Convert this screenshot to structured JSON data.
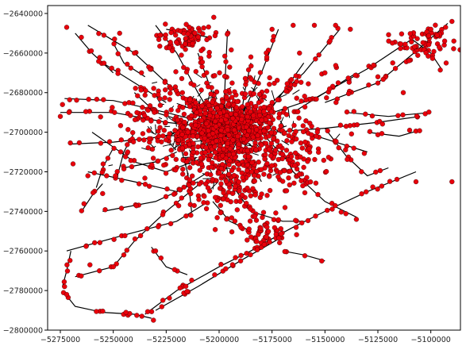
{
  "chart_data": {
    "type": "scatter",
    "title": "",
    "xlabel": "",
    "ylabel": "",
    "xlim": [
      -5281000,
      -5086000
    ],
    "ylim": [
      -2800000,
      -2636000
    ],
    "grid": false,
    "legend": "none",
    "x_ticks": [
      -5275000,
      -5250000,
      -5225000,
      -5200000,
      -5175000,
      -5150000,
      -5125000,
      -5100000
    ],
    "y_ticks": [
      -2640000,
      -2660000,
      -2680000,
      -2700000,
      -2720000,
      -2740000,
      -2760000,
      -2780000,
      -2800000
    ],
    "x_tick_labels": [
      "−5275000",
      "−5250000",
      "−5225000",
      "−5200000",
      "−5175000",
      "−5150000",
      "−5125000",
      "−5100000"
    ],
    "y_tick_labels": [
      "−2640000",
      "−2660000",
      "−2680000",
      "−2700000",
      "−2720000",
      "−2740000",
      "−2760000",
      "−2780000",
      "−2800000"
    ],
    "colors": {
      "lines": "#000000",
      "points": "#e8000b",
      "point_edge": "#000000",
      "axes": "#000000"
    },
    "series": [
      {
        "kind": "lines",
        "paths": [
          [
            [
              -5275000,
              -2690000
            ],
            [
              -5250000,
              -2690000
            ],
            [
              -5225000,
              -2695000
            ],
            [
              -5200000,
              -2698000
            ],
            [
              -5175000,
              -2700000
            ],
            [
              -5150000,
              -2698000
            ],
            [
              -5125000,
              -2695000
            ],
            [
              -5105000,
              -2692000
            ]
          ],
          [
            [
              -5271000,
              -2706000
            ],
            [
              -5250000,
              -2705000
            ],
            [
              -5225000,
              -2702000
            ],
            [
              -5200000,
              -2700000
            ]
          ],
          [
            [
              -5273000,
              -2683000
            ],
            [
              -5250000,
              -2684000
            ],
            [
              -5225000,
              -2690000
            ],
            [
              -5200000,
              -2697000
            ]
          ],
          [
            [
              -5230000,
              -2646000
            ],
            [
              -5220000,
              -2660000
            ],
            [
              -5210000,
              -2680000
            ],
            [
              -5200000,
              -2698000
            ]
          ],
          [
            [
              -5262000,
              -2646000
            ],
            [
              -5240000,
              -2660000
            ],
            [
              -5220000,
              -2680000
            ],
            [
              -5200000,
              -2697000
            ]
          ],
          [
            [
              -5196000,
              -2648000
            ],
            [
              -5197000,
              -2670000
            ],
            [
              -5198000,
              -2698000
            ]
          ],
          [
            [
              -5172000,
              -2648000
            ],
            [
              -5180000,
              -2670000
            ],
            [
              -5192000,
              -2698000
            ]
          ],
          [
            [
              -5143000,
              -2648000
            ],
            [
              -5160000,
              -2670000
            ],
            [
              -5180000,
              -2690000
            ],
            [
              -5195000,
              -2698000
            ]
          ],
          [
            [
              -5109000,
              -2653000
            ],
            [
              -5130000,
              -2668000
            ],
            [
              -5155000,
              -2683000
            ],
            [
              -5180000,
              -2692000
            ],
            [
              -5198000,
              -2698000
            ]
          ],
          [
            [
              -5092000,
              -2645000
            ],
            [
              -5108000,
              -2660000
            ],
            [
              -5125000,
              -2675000
            ],
            [
              -5150000,
              -2685000
            ]
          ],
          [
            [
              -5109000,
              -2653000
            ],
            [
              -5100000,
              -2660000
            ],
            [
              -5095000,
              -2668000
            ]
          ],
          [
            [
              -5260000,
              -2700000
            ],
            [
              -5240000,
              -2715000
            ],
            [
              -5225000,
              -2720000
            ],
            [
              -5200000,
              -2710000
            ]
          ],
          [
            [
              -5262000,
              -2720000
            ],
            [
              -5240000,
              -2725000
            ],
            [
              -5220000,
              -2730000
            ],
            [
              -5205000,
              -2720000
            ]
          ],
          [
            [
              -5255000,
              -2740000
            ],
            [
              -5230000,
              -2735000
            ],
            [
              -5210000,
              -2725000
            ]
          ],
          [
            [
              -5272000,
              -2760000
            ],
            [
              -5245000,
              -2752000
            ],
            [
              -5220000,
              -2745000
            ],
            [
              -5205000,
              -2735000
            ]
          ],
          [
            [
              -5268000,
              -2773000
            ],
            [
              -5250000,
              -2768000
            ],
            [
              -5240000,
              -2755000
            ],
            [
              -5225000,
              -2740000
            ],
            [
              -5208000,
              -2725000
            ]
          ],
          [
            [
              -5200000,
              -2700000
            ],
            [
              -5195000,
              -2725000
            ],
            [
              -5185000,
              -2740000
            ],
            [
              -5170000,
              -2745000
            ],
            [
              -5160000,
              -2745000
            ]
          ],
          [
            [
              -5175000,
              -2700000
            ],
            [
              -5165000,
              -2720000
            ],
            [
              -5150000,
              -2735000
            ],
            [
              -5135000,
              -2743000
            ]
          ],
          [
            [
              -5150000,
              -2698000
            ],
            [
              -5140000,
              -2712000
            ],
            [
              -5130000,
              -2722000
            ],
            [
              -5120000,
              -2718000
            ]
          ],
          [
            [
              -5107000,
              -2720000
            ],
            [
              -5130000,
              -2730000
            ],
            [
              -5150000,
              -2740000
            ],
            [
              -5165000,
              -2748000
            ],
            [
              -5172000,
              -2752000
            ]
          ],
          [
            [
              -5172000,
              -2752000
            ],
            [
              -5185000,
              -2760000
            ],
            [
              -5200000,
              -2768000
            ],
            [
              -5220000,
              -2780000
            ],
            [
              -5235000,
              -2792000
            ]
          ],
          [
            [
              -5172000,
              -2754000
            ],
            [
              -5190000,
              -2765000
            ],
            [
              -5210000,
              -2778000
            ],
            [
              -5230000,
              -2790000
            ]
          ],
          [
            [
              -5274000,
              -2780000
            ],
            [
              -5268000,
              -2788000
            ],
            [
              -5255000,
              -2791000
            ],
            [
              -5240000,
              -2792000
            ],
            [
              -5232000,
              -2794000
            ]
          ],
          [
            [
              -5274000,
              -2778000
            ],
            [
              -5272000,
              -2770000
            ],
            [
              -5270000,
              -2760000
            ]
          ],
          [
            [
              -5220000,
              -2700000
            ],
            [
              -5215000,
              -2720000
            ],
            [
              -5213000,
              -2740000
            ]
          ],
          [
            [
              -5190000,
              -2700000
            ],
            [
              -5185000,
              -2715000
            ],
            [
              -5180000,
              -2725000
            ]
          ],
          [
            [
              -5180000,
              -2700000
            ],
            [
              -5170000,
              -2712000
            ],
            [
              -5160000,
              -2722000
            ]
          ],
          [
            [
              -5160000,
              -2700000
            ],
            [
              -5145000,
              -2705000
            ],
            [
              -5130000,
              -2710000
            ]
          ],
          [
            [
              -5240000,
              -2680000
            ],
            [
              -5230000,
              -2690000
            ],
            [
              -5215000,
              -2695000
            ]
          ],
          [
            [
              -5255000,
              -2665000
            ],
            [
              -5240000,
              -2675000
            ],
            [
              -5225000,
              -2685000
            ]
          ],
          [
            [
              -5210000,
              -2660000
            ],
            [
              -5205000,
              -2675000
            ],
            [
              -5200000,
              -2690000
            ]
          ],
          [
            [
              -5185000,
              -2665000
            ],
            [
              -5188000,
              -2680000
            ],
            [
              -5190000,
              -2695000
            ]
          ],
          [
            [
              -5160000,
              -2665000
            ],
            [
              -5170000,
              -2680000
            ],
            [
              -5180000,
              -2695000
            ]
          ],
          [
            [
              -5135000,
              -2670000
            ],
            [
              -5150000,
              -2680000
            ],
            [
              -5165000,
              -2690000
            ]
          ],
          [
            [
              -5268000,
              -2650000
            ],
            [
              -5260000,
              -2660000
            ],
            [
              -5250000,
              -2670000
            ]
          ],
          [
            [
              -5250000,
              -2655000
            ],
            [
              -5245000,
              -2665000
            ],
            [
              -5235000,
              -2672000
            ]
          ],
          [
            [
              -5220000,
              -2710000
            ],
            [
              -5230000,
              -2715000
            ],
            [
              -5245000,
              -2718000
            ]
          ],
          [
            [
              -5203000,
              -2735000
            ],
            [
              -5195000,
              -2745000
            ],
            [
              -5185000,
              -2750000
            ]
          ],
          [
            [
              -5250000,
              -2708000
            ],
            [
              -5255000,
              -2718000
            ],
            [
              -5258000,
              -2728000
            ]
          ],
          [
            [
              -5240000,
              -2700000
            ],
            [
              -5245000,
              -2710000
            ],
            [
              -5248000,
              -2722000
            ]
          ],
          [
            [
              -5140000,
              -2690000
            ],
            [
              -5120000,
              -2692000
            ],
            [
              -5100000,
              -2690000
            ]
          ],
          [
            [
              -5130000,
              -2700000
            ],
            [
              -5115000,
              -2702000
            ],
            [
              -5105000,
              -2699000
            ]
          ],
          [
            [
              -5225000,
              -2648000
            ],
            [
              -5215000,
              -2650000
            ],
            [
              -5205000,
              -2652000
            ]
          ],
          [
            [
              -5170000,
              -2760000
            ],
            [
              -5160000,
              -2762000
            ],
            [
              -5150000,
              -2765000
            ]
          ],
          [
            [
              -5232000,
              -2758000
            ],
            [
              -5225000,
              -2768000
            ],
            [
              -5215000,
              -2772000
            ]
          ],
          [
            [
              -5265000,
              -2740000
            ],
            [
              -5260000,
              -2732000
            ],
            [
              -5255000,
              -2726000
            ]
          ]
        ]
      },
      {
        "kind": "points",
        "clusters": [
          {
            "cx": -5198000,
            "cy": -2700000,
            "sx": 12000,
            "sy": 8000,
            "n": 520
          },
          {
            "cx": -5200000,
            "cy": -2695000,
            "sx": 22000,
            "sy": 14000,
            "n": 380
          },
          {
            "cx": -5215000,
            "cy": -2652000,
            "sx": 9000,
            "sy": 4000,
            "n": 70
          },
          {
            "cx": -5104000,
            "cy": -2655000,
            "sx": 6000,
            "sy": 5000,
            "n": 60
          },
          {
            "cx": -5178000,
            "cy": -2750000,
            "sx": 6000,
            "sy": 4000,
            "n": 50
          },
          {
            "cx": -5195000,
            "cy": -2728000,
            "sx": 9000,
            "sy": 8000,
            "n": 120
          },
          {
            "cx": -5165000,
            "cy": -2715000,
            "sx": 10000,
            "sy": 9000,
            "n": 90
          }
        ],
        "along_lines_density": 0.55,
        "isolated": [
          [
            -5272000,
            -2647000
          ],
          [
            -5275000,
            -2692000
          ],
          [
            -5274000,
            -2686000
          ],
          [
            -5273000,
            -2778000
          ],
          [
            -5272000,
            -2782000
          ],
          [
            -5261000,
            -2767000
          ],
          [
            -5244000,
            -2791000
          ],
          [
            -5231000,
            -2795000
          ],
          [
            -5090000,
            -2644000
          ],
          [
            -5093000,
            -2647000
          ],
          [
            -5097000,
            -2651000
          ],
          [
            -5100000,
            -2648000
          ],
          [
            -5096000,
            -2657000
          ],
          [
            -5090000,
            -2725000
          ],
          [
            -5107000,
            -2725000
          ],
          [
            -5110000,
            -2699000
          ],
          [
            -5140000,
            -2697000
          ],
          [
            -5138000,
            -2648000
          ],
          [
            -5145000,
            -2646000
          ],
          [
            -5155000,
            -2646000
          ],
          [
            -5165000,
            -2646000
          ],
          [
            -5175000,
            -2648000
          ],
          [
            -5247000,
            -2650000
          ],
          [
            -5240000,
            -2660000
          ],
          [
            -5230000,
            -2760000
          ],
          [
            -5245000,
            -2762000
          ],
          [
            -5255000,
            -2731000
          ],
          [
            -5262000,
            -2722000
          ],
          [
            -5269000,
            -2716000
          ],
          [
            -5118000,
            -2665000
          ],
          [
            -5125000,
            -2672000
          ],
          [
            -5113000,
            -2680000
          ],
          [
            -5150000,
            -2670000
          ],
          [
            -5162000,
            -2660000
          ],
          [
            -5185000,
            -2662000
          ]
        ]
      }
    ]
  }
}
